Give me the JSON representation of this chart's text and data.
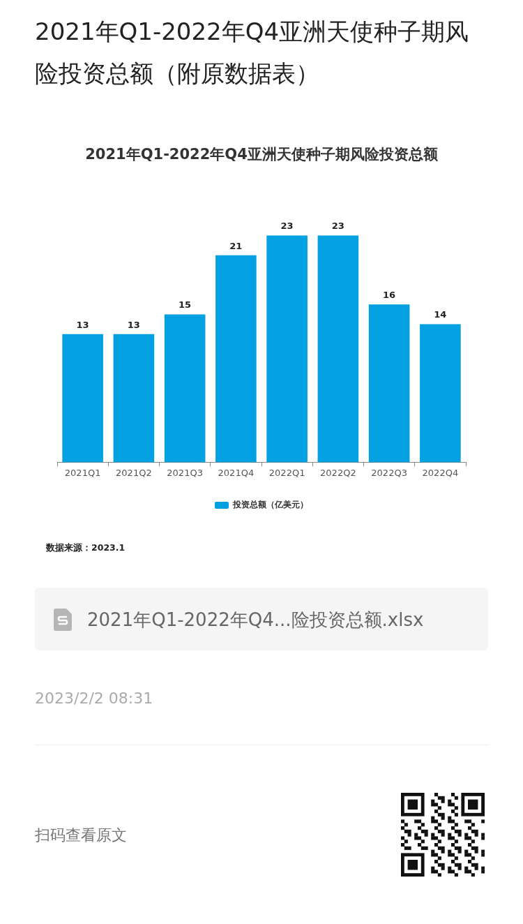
{
  "chart_data": {
    "type": "bar",
    "title": "2021年Q1-2022年Q4亚洲天使种子期风险投资总额（附原数据表）",
    "subtitle": "2021年Q1-2022年Q4亚洲天使种子期风险投资总额",
    "categories": [
      "2021Q1",
      "2021Q2",
      "2021Q3",
      "2021Q4",
      "2022Q1",
      "2022Q2",
      "2022Q3",
      "2022Q4"
    ],
    "series": [
      {
        "name": "投资总额（亿美元）",
        "color": "#03a0e2",
        "values": [
          13,
          13,
          15,
          21,
          23,
          23,
          16,
          14
        ]
      }
    ],
    "data_labels": true,
    "legend": "bottom",
    "annotations": [
      "数据来源：2023.1",
      "2021年Q1-2022年Q4...险投资总额.xlsx",
      "2023/2/2 08:31",
      "扫码查看原文"
    ]
  }
}
